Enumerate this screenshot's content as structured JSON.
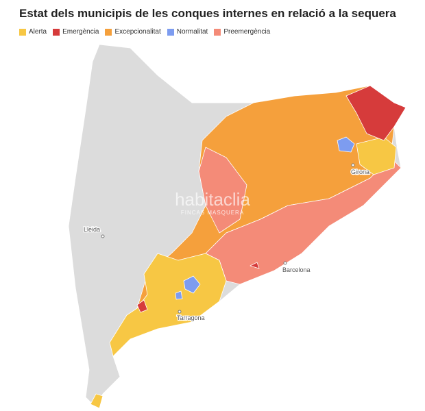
{
  "title": "Estat dels municipis de les conques internes en relació a la sequera",
  "legend": [
    {
      "name": "Alerta",
      "color": "#f7c744"
    },
    {
      "name": "Emergència",
      "color": "#d63b3b"
    },
    {
      "name": "Excepcionalitat",
      "color": "#f5a03c"
    },
    {
      "name": "Normalitat",
      "color": "#7d9cf0"
    },
    {
      "name": "Preemergència",
      "color": "#f48b78"
    }
  ],
  "cities": [
    "Lleida",
    "Girona",
    "Barcelona",
    "Tarragona"
  ],
  "watermark": {
    "brand": "habitaclia",
    "agency": "FINCAS MASQUERA"
  }
}
